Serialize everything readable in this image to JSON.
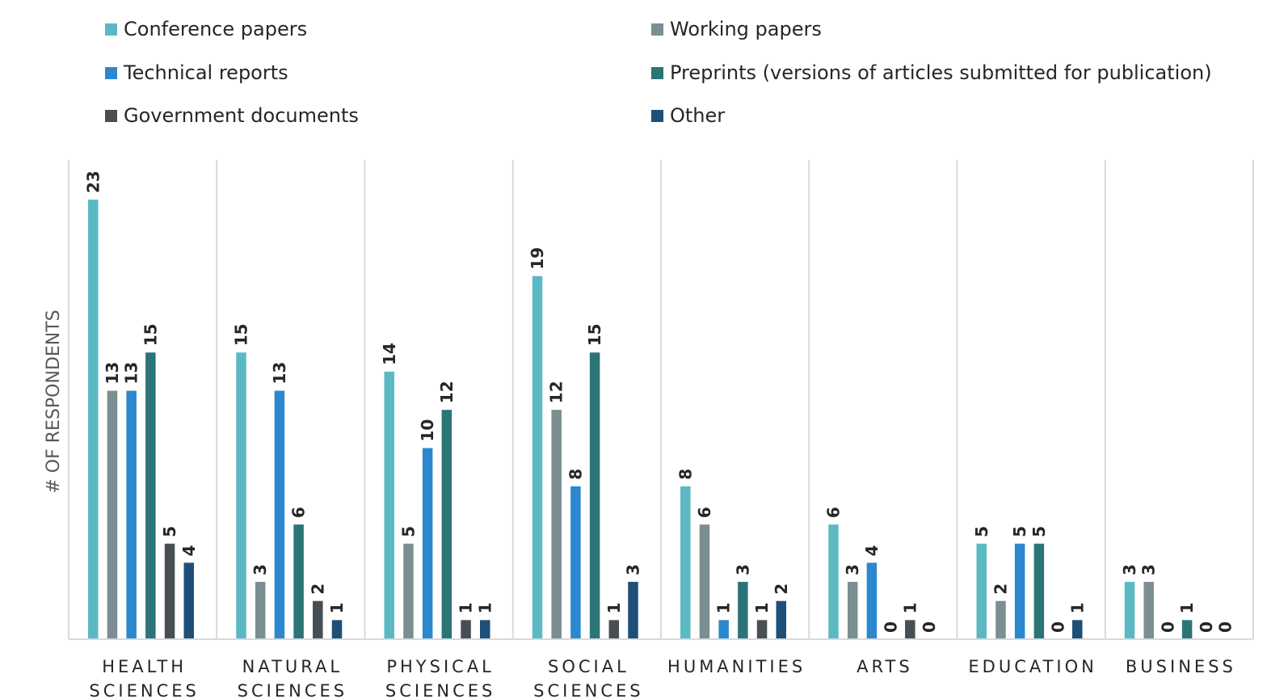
{
  "chart_data": {
    "type": "bar",
    "title": "",
    "xlabel": "",
    "ylabel": "# OF RESPONDENTS",
    "ylim": [
      0,
      25
    ],
    "grid": "vertical separators between categories",
    "legend_position": "top",
    "categories": [
      [
        "HEALTH",
        "SCIENCES"
      ],
      [
        "NATURAL",
        "SCIENCES"
      ],
      [
        "PHYSICAL",
        "SCIENCES"
      ],
      [
        "SOCIAL",
        "SCIENCES"
      ],
      [
        "HUMANITIES"
      ],
      [
        "ARTS"
      ],
      [
        "EDUCATION"
      ],
      [
        "BUSINESS"
      ]
    ],
    "series": [
      {
        "name": "Conference papers",
        "color": "#5BB9C4",
        "values": [
          23,
          15,
          14,
          19,
          8,
          6,
          5,
          3
        ]
      },
      {
        "name": "Working papers",
        "color": "#7B8E91",
        "values": [
          13,
          3,
          5,
          12,
          6,
          3,
          2,
          3
        ]
      },
      {
        "name": "Technical reports",
        "color": "#2B88CE",
        "values": [
          13,
          13,
          10,
          8,
          1,
          4,
          5,
          0
        ]
      },
      {
        "name": "Preprints (versions of articles submitted for publication)",
        "color": "#2C7577",
        "values": [
          15,
          6,
          12,
          15,
          3,
          0,
          5,
          1
        ]
      },
      {
        "name": "Government documents",
        "color": "#474F52",
        "values": [
          5,
          2,
          1,
          1,
          1,
          1,
          0,
          0
        ]
      },
      {
        "name": "Other",
        "color": "#1E4F78",
        "values": [
          4,
          1,
          1,
          3,
          2,
          0,
          1,
          0
        ]
      }
    ]
  }
}
